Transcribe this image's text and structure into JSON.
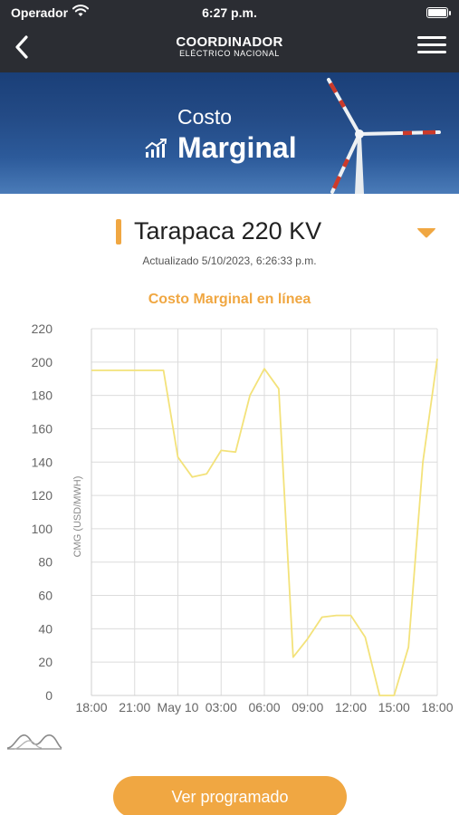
{
  "status_bar": {
    "carrier": "Operador",
    "time": "6:27 p.m."
  },
  "header": {
    "brand_main": "COORDINADOR",
    "brand_sub": "ELÉCTRICO NACIONAL"
  },
  "banner": {
    "line1": "Costo",
    "line2": "Marginal"
  },
  "station": {
    "name": "Tarapaca 220 KV",
    "updated": "Actualizado 5/10/2023, 6:26:33 p.m."
  },
  "chart_data": {
    "type": "line",
    "title": "Costo Marginal en línea",
    "ylabel": "CMG (USD/MWH)",
    "xlabel": "",
    "ylim": [
      0,
      220
    ],
    "yticks": [
      0,
      20,
      40,
      60,
      80,
      100,
      120,
      140,
      160,
      180,
      200,
      220
    ],
    "xticks": [
      "18:00",
      "21:00",
      "May 10",
      "03:00",
      "06:00",
      "09:00",
      "12:00",
      "15:00",
      "18:00"
    ],
    "xrange_hours": [
      0,
      24
    ],
    "grid": true,
    "line_color": "#f3e27a",
    "series": [
      {
        "x": [
          0,
          1,
          2,
          3,
          4,
          5,
          6,
          7,
          8,
          9,
          10,
          11,
          12,
          13,
          14,
          15,
          16,
          17,
          18,
          19,
          20,
          21,
          22,
          23,
          24
        ],
        "values": [
          195,
          195,
          195,
          195,
          195,
          195,
          143,
          131,
          133,
          147,
          146,
          180,
          196,
          184,
          23,
          34,
          47,
          48,
          48,
          35,
          0,
          0,
          29,
          140,
          202
        ]
      }
    ]
  },
  "actions": {
    "primary": "Ver programado"
  },
  "colors": {
    "accent": "#f0a742",
    "header_bg": "#2b2d33"
  }
}
